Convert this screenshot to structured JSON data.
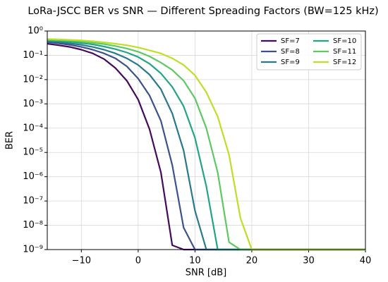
{
  "chart_data": {
    "type": "line",
    "title": "LoRa-JSCC BER vs SNR — Different Spreading Factors (BW=125 kHz)",
    "xlabel": "SNR [dB]",
    "ylabel": "BER",
    "x": [
      -16,
      -14,
      -12,
      -10,
      -8,
      -6,
      -4,
      -2,
      0,
      2,
      4,
      6,
      8,
      10,
      12,
      14,
      16,
      18,
      20,
      22,
      24,
      26,
      28,
      30,
      32,
      34,
      36,
      38,
      40
    ],
    "series": [
      {
        "name": "SF=7",
        "color": "#46085c",
        "values": [
          0.3,
          0.26,
          0.22,
          0.17,
          0.12,
          0.07,
          0.03,
          0.009,
          0.0015,
          9e-05,
          1.5e-06,
          1.5e-09,
          1e-09,
          1e-09,
          1e-09,
          1e-09,
          1e-09,
          1e-09,
          1e-09,
          1e-09,
          1e-09,
          1e-09,
          1e-09,
          1e-09,
          1e-09,
          1e-09,
          1e-09,
          1e-09,
          1e-09
        ]
      },
      {
        "name": "SF=8",
        "color": "#3b528b",
        "values": [
          0.35,
          0.31,
          0.27,
          0.22,
          0.17,
          0.12,
          0.075,
          0.035,
          0.011,
          0.0022,
          0.0002,
          3e-06,
          8e-09,
          1e-09,
          1e-09,
          1e-09,
          1e-09,
          1e-09,
          1e-09,
          1e-09,
          1e-09,
          1e-09,
          1e-09,
          1e-09,
          1e-09,
          1e-09,
          1e-09,
          1e-09,
          1e-09
        ]
      },
      {
        "name": "SF=9",
        "color": "#2a788e",
        "values": [
          0.38,
          0.35,
          0.31,
          0.27,
          0.22,
          0.17,
          0.12,
          0.075,
          0.04,
          0.016,
          0.004,
          0.0004,
          1.2e-05,
          4e-08,
          1e-09,
          1e-09,
          1e-09,
          1e-09,
          1e-09,
          1e-09,
          1e-09,
          1e-09,
          1e-09,
          1e-09,
          1e-09,
          1e-09,
          1e-09,
          1e-09,
          1e-09
        ]
      },
      {
        "name": "SF=10",
        "color": "#21a585",
        "values": [
          0.41,
          0.39,
          0.36,
          0.32,
          0.28,
          0.23,
          0.18,
          0.13,
          0.085,
          0.045,
          0.018,
          0.005,
          0.0008,
          4e-05,
          4e-07,
          1e-09,
          1e-09,
          1e-09,
          1e-09,
          1e-09,
          1e-09,
          1e-09,
          1e-09,
          1e-09,
          1e-09,
          1e-09,
          1e-09,
          1e-09,
          1e-09
        ]
      },
      {
        "name": "SF=11",
        "color": "#5ec962",
        "values": [
          0.44,
          0.42,
          0.4,
          0.37,
          0.33,
          0.29,
          0.24,
          0.19,
          0.14,
          0.09,
          0.05,
          0.025,
          0.009,
          0.0017,
          0.0001,
          1.5e-06,
          2e-09,
          1e-09,
          1e-09,
          1e-09,
          1e-09,
          1e-09,
          1e-09,
          1e-09,
          1e-09,
          1e-09,
          1e-09,
          1e-09,
          1e-09
        ]
      },
      {
        "name": "SF=12",
        "color": "#bddf26",
        "values": [
          0.47,
          0.45,
          0.43,
          0.41,
          0.38,
          0.34,
          0.3,
          0.26,
          0.21,
          0.16,
          0.12,
          0.075,
          0.04,
          0.015,
          0.003,
          0.0003,
          8e-06,
          2e-08,
          1e-09,
          1e-09,
          1e-09,
          1e-09,
          1e-09,
          1e-09,
          1e-09,
          1e-09,
          1e-09,
          1e-09,
          1e-09
        ]
      }
    ],
    "xlim": [
      -16,
      40
    ],
    "xticks": [
      {
        "value": -10,
        "label": "−10"
      },
      0,
      10,
      20,
      30,
      40
    ],
    "ylim": [
      1e-09,
      1
    ],
    "log_y": true,
    "yticks": [
      {
        "value": 1,
        "label": "10⁰"
      },
      {
        "value": 0.1,
        "label": "10⁻¹"
      },
      {
        "value": 0.01,
        "label": "10⁻²"
      },
      {
        "value": 0.001,
        "label": "10⁻³"
      },
      {
        "value": 0.0001,
        "label": "10⁻⁴"
      },
      {
        "value": 1e-05,
        "label": "10⁻⁵"
      },
      {
        "value": 1e-06,
        "label": "10⁻⁶"
      },
      {
        "value": 1e-07,
        "label": "10⁻⁷"
      },
      {
        "value": 1e-08,
        "label": "10⁻⁸"
      },
      {
        "value": 1e-09,
        "label": "10⁻⁹"
      }
    ],
    "grid": true,
    "legend": "upper right",
    "legend_columns": 2
  }
}
